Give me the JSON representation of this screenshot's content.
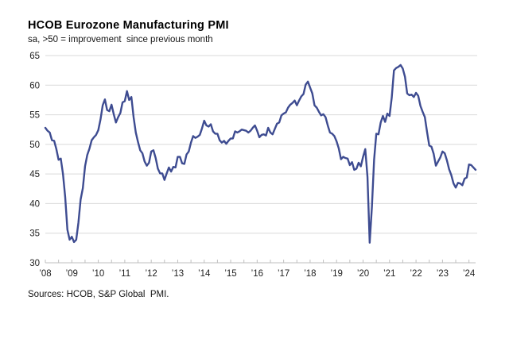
{
  "header": {
    "title": "HCOB Eurozone Manufacturing PMI",
    "subtitle": "sa, >50 = improvement  since previous month"
  },
  "footer": {
    "sources": "Sources: HCOB, S&P Global  PMI."
  },
  "chart_data": {
    "type": "line",
    "title": "HCOB Eurozone Manufacturing PMI",
    "subtitle": "sa, >50 = improvement since previous month",
    "xlabel": "",
    "ylabel": "",
    "ylim": [
      30,
      65
    ],
    "yticks": [
      30,
      35,
      40,
      45,
      50,
      55,
      60,
      65
    ],
    "xlim": [
      2008.0,
      2024.25
    ],
    "xtick_labels": [
      "’08",
      "’09",
      "’10",
      "’11",
      "’12",
      "’13",
      "’14",
      "’15",
      "’16",
      "’17",
      "’18",
      "’19",
      "’20",
      "’21",
      "’22",
      "’23",
      "’24"
    ],
    "x_start_year": 2008,
    "frequency": "monthly",
    "grid": "horizontal",
    "legend": "none",
    "line_color": "#3e4c91",
    "gridline_color": "#d9d9d9",
    "axis_color": "#bfbfbf",
    "series": [
      {
        "name": "Eurozone Manufacturing PMI",
        "values": [
          52.8,
          52.3,
          52.0,
          50.7,
          50.6,
          49.2,
          47.4,
          47.6,
          45.0,
          41.1,
          35.6,
          33.9,
          34.4,
          33.5,
          33.9,
          36.8,
          40.7,
          42.6,
          46.3,
          48.2,
          49.3,
          50.7,
          51.2,
          51.6,
          52.4,
          54.2,
          56.6,
          57.6,
          55.8,
          55.6,
          56.7,
          55.1,
          53.7,
          54.6,
          55.3,
          57.1,
          57.3,
          59.0,
          57.5,
          58.0,
          54.6,
          52.0,
          50.4,
          49.0,
          48.5,
          47.1,
          46.4,
          46.9,
          48.8,
          49.0,
          47.7,
          45.9,
          45.1,
          45.1,
          44.0,
          45.1,
          46.1,
          45.4,
          46.2,
          46.1,
          47.9,
          47.9,
          46.8,
          46.7,
          48.3,
          48.8,
          50.3,
          51.4,
          51.1,
          51.3,
          51.6,
          52.7,
          54.0,
          53.2,
          53.0,
          53.4,
          52.2,
          51.8,
          51.8,
          50.7,
          50.3,
          50.6,
          50.1,
          50.6,
          51.0,
          51.0,
          52.2,
          52.0,
          52.2,
          52.5,
          52.4,
          52.3,
          52.0,
          52.3,
          52.8,
          53.2,
          52.3,
          51.2,
          51.6,
          51.7,
          51.5,
          52.8,
          52.0,
          51.7,
          52.6,
          53.5,
          53.7,
          54.9,
          55.2,
          55.4,
          56.2,
          56.7,
          57.0,
          57.4,
          56.6,
          57.4,
          58.1,
          58.5,
          60.1,
          60.6,
          59.6,
          58.6,
          56.6,
          56.2,
          55.5,
          54.9,
          55.1,
          54.6,
          53.2,
          52.0,
          51.8,
          51.4,
          50.5,
          49.3,
          47.5,
          47.9,
          47.7,
          47.6,
          46.5,
          47.0,
          45.7,
          45.9,
          46.9,
          46.3,
          47.9,
          49.2,
          44.5,
          33.4,
          39.4,
          47.4,
          51.8,
          51.7,
          53.7,
          54.8,
          53.8,
          55.2,
          54.8,
          57.9,
          62.5,
          62.9,
          63.1,
          63.4,
          62.8,
          61.4,
          58.6,
          58.3,
          58.4,
          58.0,
          58.7,
          58.2,
          56.5,
          55.5,
          54.6,
          52.1,
          49.8,
          49.6,
          48.4,
          46.4,
          47.1,
          47.8,
          48.8,
          48.5,
          47.3,
          45.8,
          44.8,
          43.4,
          42.7,
          43.5,
          43.4,
          43.1,
          44.2,
          44.4,
          46.6,
          46.5,
          46.1,
          45.7
        ]
      }
    ]
  }
}
